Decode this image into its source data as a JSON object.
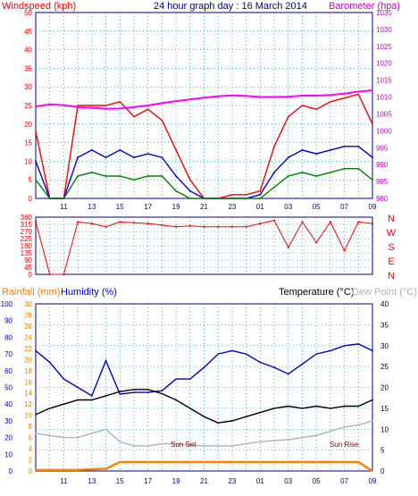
{
  "header": {
    "windspeed_label": "Windspeed (kph)",
    "title": "24 hour graph day : 16 March 2014",
    "barometer_label": "Barometer (hpa)"
  },
  "lower_header": {
    "rainfall_label": "Rainfall (mm)",
    "humidity_label": "Humidity (%)",
    "temperature_label": "Temperature (°C)",
    "dewpoint_label": "Dew Point (°C)"
  },
  "annotations": {
    "sunset": "Sun Set",
    "sunrise": "Sun Rise"
  },
  "colors": {
    "gust": "#ff0000",
    "average": "#0000cc",
    "lull": "#008000",
    "barometer": "#ff00ff",
    "direction": "#ff0000",
    "humidity": "#0000cc",
    "temperature": "#000000",
    "dewpoint": "#b0b0b0",
    "rainfall": "#ff8000",
    "axis_left": "#ff0000",
    "axis_right": "#cc00cc",
    "frame": "#000080",
    "grid": "#008080",
    "sun_label": "#800000",
    "humidity_axis": "#0000cc",
    "rain_axis": "#ff8000"
  },
  "chart_data": [
    {
      "type": "line",
      "x": [
        9,
        10,
        11,
        12,
        13,
        14,
        15,
        16,
        17,
        18,
        19,
        20,
        21,
        22,
        23,
        0,
        1,
        2,
        3,
        4,
        5,
        6,
        7,
        8,
        9
      ],
      "xticks": [
        "11",
        "13",
        "15",
        "17",
        "19",
        "21",
        "23",
        "01",
        "03",
        "05",
        "07",
        "09"
      ],
      "ylim": [
        0,
        50
      ],
      "yticks": [
        0,
        5,
        10,
        15,
        20,
        25,
        30,
        35,
        40,
        45,
        50
      ],
      "y2lim": [
        980,
        1035
      ],
      "y2ticks": [
        980,
        985,
        990,
        995,
        1000,
        1005,
        1010,
        1015,
        1020,
        1025,
        1030,
        1035
      ],
      "series": [
        {
          "key": "gust",
          "values": [
            18,
            0,
            0,
            25,
            25,
            25,
            26,
            22,
            24,
            21,
            13,
            5,
            0,
            0,
            1,
            1,
            2,
            14,
            22,
            25,
            24,
            26,
            27,
            28,
            20
          ]
        },
        {
          "key": "average",
          "values": [
            10,
            0,
            0,
            11,
            13,
            11,
            13,
            11,
            12,
            11,
            6,
            2,
            0,
            0,
            0,
            0,
            1,
            7,
            11,
            13,
            12,
            13,
            14,
            14,
            11
          ]
        },
        {
          "key": "lull",
          "values": [
            5,
            0,
            0,
            6,
            7,
            6,
            6,
            5,
            6,
            6,
            2,
            0,
            0,
            0,
            0,
            0,
            0,
            3,
            6,
            7,
            6,
            7,
            8,
            8,
            5
          ]
        },
        {
          "key": "barometer",
          "values": [
            1007.2,
            1007.8,
            1007.6,
            1007.0,
            1006.8,
            1006.5,
            1006.6,
            1007.0,
            1007.5,
            1008.2,
            1008.8,
            1009.3,
            1009.8,
            1010.2,
            1010.5,
            1010.3,
            1010.0,
            1010.0,
            1010.1,
            1010.4,
            1010.4,
            1010.6,
            1011.0,
            1011.6,
            1012.0
          ]
        }
      ]
    },
    {
      "type": "scatter",
      "x": [
        9,
        10,
        11,
        12,
        13,
        14,
        15,
        16,
        17,
        18,
        19,
        20,
        21,
        22,
        23,
        0,
        1,
        2,
        3,
        4,
        5,
        6,
        7,
        8,
        9
      ],
      "ylim": [
        0,
        360
      ],
      "yticks": [
        0,
        45,
        90,
        135,
        180,
        225,
        270,
        315,
        360
      ],
      "direction_labels": [
        "N",
        "W",
        "S",
        "E",
        "N"
      ],
      "series": [
        {
          "key": "direction",
          "values": [
            330,
            0,
            0,
            330,
            320,
            300,
            330,
            325,
            320,
            310,
            300,
            305,
            300,
            300,
            300,
            300,
            320,
            340,
            170,
            330,
            200,
            330,
            150,
            330,
            320
          ]
        }
      ]
    },
    {
      "type": "line",
      "x": [
        9,
        10,
        11,
        12,
        13,
        14,
        15,
        16,
        17,
        18,
        19,
        20,
        21,
        22,
        23,
        0,
        1,
        2,
        3,
        4,
        5,
        6,
        7,
        8,
        9
      ],
      "ylim_humidity": [
        0,
        100
      ],
      "yticks_humidity": [
        0,
        10,
        20,
        30,
        40,
        50,
        60,
        70,
        80,
        90,
        100
      ],
      "ylim_rain": [
        0,
        30
      ],
      "yticks_rain": [
        0,
        2,
        4,
        6,
        8,
        10,
        12,
        14,
        16,
        18,
        20,
        22,
        24,
        26,
        28,
        30
      ],
      "ylim_temp": [
        0,
        40
      ],
      "yticks_temp": [
        0,
        5,
        10,
        15,
        20,
        25,
        30,
        35,
        40
      ],
      "series": [
        {
          "key": "humidity",
          "axis": "humidity",
          "values": [
            72,
            65,
            55,
            50,
            45,
            66,
            46,
            47,
            47,
            48,
            55,
            55,
            62,
            70,
            72,
            70,
            65,
            62,
            58,
            64,
            70,
            72,
            75,
            76,
            72
          ]
        },
        {
          "key": "temperature",
          "axis": "temp",
          "values": [
            13.5,
            15,
            16,
            17,
            17,
            18,
            19,
            19.5,
            19.5,
            18.5,
            17,
            15,
            13,
            11.5,
            12,
            13,
            14,
            15,
            15.5,
            15,
            15.5,
            15,
            15.5,
            15.5,
            17
          ]
        },
        {
          "key": "dewpoint",
          "axis": "temp",
          "values": [
            9,
            8.5,
            8,
            8,
            9,
            10,
            7,
            6,
            6,
            6.5,
            6.5,
            6.2,
            6,
            6,
            6,
            6.5,
            7,
            7.3,
            7.5,
            8,
            8.5,
            9.5,
            10.5,
            11,
            12
          ]
        },
        {
          "key": "rainfall",
          "axis": "rain",
          "values": [
            0.2,
            0.2,
            0.2,
            0.2,
            0.3,
            0.4,
            1.6,
            1.6,
            1.6,
            1.6,
            1.6,
            1.6,
            1.6,
            1.6,
            1.6,
            1.6,
            1.6,
            1.6,
            1.6,
            1.6,
            1.6,
            1.6,
            1.6,
            1.6,
            0.0
          ]
        }
      ]
    }
  ]
}
